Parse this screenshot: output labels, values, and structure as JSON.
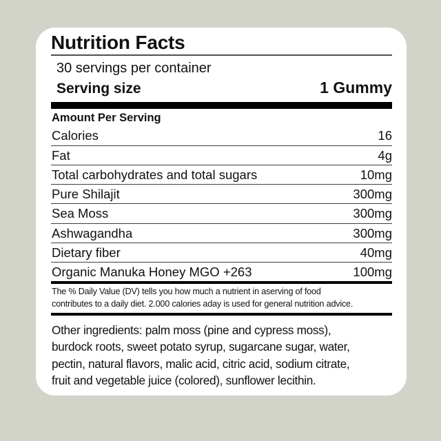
{
  "label": {
    "title": "Nutrition Facts",
    "servings_per_container": "30 servings per container",
    "serving_size_label": "Serving size",
    "serving_size_value": "1 Gummy",
    "amount_per_serving_heading": "Amount Per Serving",
    "rows": [
      {
        "name": "Calories",
        "value": "16"
      },
      {
        "name": "Fat",
        "value": "4g"
      },
      {
        "name": "Total carbohydrates and total sugars",
        "value": "10mg"
      },
      {
        "name": "Pure Shilajit",
        "value": "300mg"
      },
      {
        "name": "Sea Moss",
        "value": "300mg"
      },
      {
        "name": "Ashwagandha",
        "value": "300mg"
      },
      {
        "name": "Dietary fiber",
        "value": "40mg"
      },
      {
        "name": "Organic Manuka Honey MGO +263",
        "value": "100mg"
      }
    ],
    "footnote_lines": [
      "The % Daily Value (DV) tells you how much a nutrient in aserving of food",
      "contributes to a daily diet. 2.000 calories aday is used for general nutrition advice."
    ],
    "ingredients_lines": [
      "Other ingredients: palm moss (pine and cypress moss),",
      "burdock roots, sweet potato syrup, sugarcane sugar, water,",
      "pectin, natural flavors, malic acid, citric acid, sodium citrate,",
      "fruit and vegetable juice (colored), sunflower lecithin."
    ]
  },
  "colors": {
    "background": "#d2d4ca",
    "card": "#ffffff",
    "text": "#111111",
    "bar": "#000000",
    "rule": "#4f4f4f",
    "separator": "#3d3d3d"
  }
}
